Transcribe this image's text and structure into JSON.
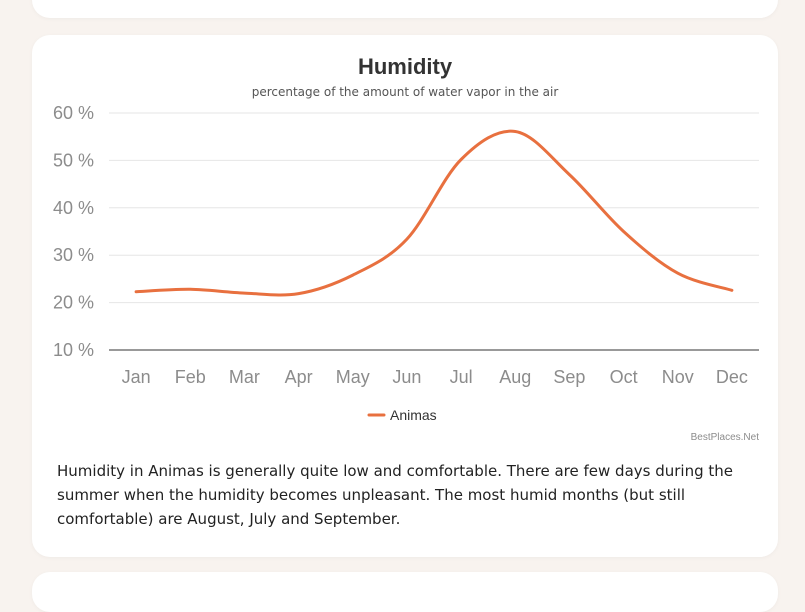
{
  "chart_data": {
    "type": "line",
    "title": "Humidity",
    "subtitle": "percentage of the amount of water vapor in the air",
    "categories": [
      "Jan",
      "Feb",
      "Mar",
      "Apr",
      "May",
      "Jun",
      "Jul",
      "Aug",
      "Sep",
      "Oct",
      "Nov",
      "Dec"
    ],
    "series": [
      {
        "name": "Animas",
        "values": [
          22.3,
          22.8,
          22.0,
          21.9,
          25.8,
          33.4,
          50.2,
          56.1,
          47.0,
          35.0,
          26.2,
          22.6
        ]
      }
    ],
    "y_ticks": [
      "60 %",
      "50 %",
      "40 %",
      "30 %",
      "20 %",
      "10 %"
    ],
    "ylim": [
      10,
      60
    ],
    "grid": true,
    "legend_position": "bottom-center",
    "line_color": "#e8703f",
    "credits": "BestPlaces.Net"
  },
  "description": "Humidity in Animas is generally quite low and comfortable. There are few days during the summer when the humidity becomes unpleasant. The most humid months (but still comfortable) are August, July and September."
}
